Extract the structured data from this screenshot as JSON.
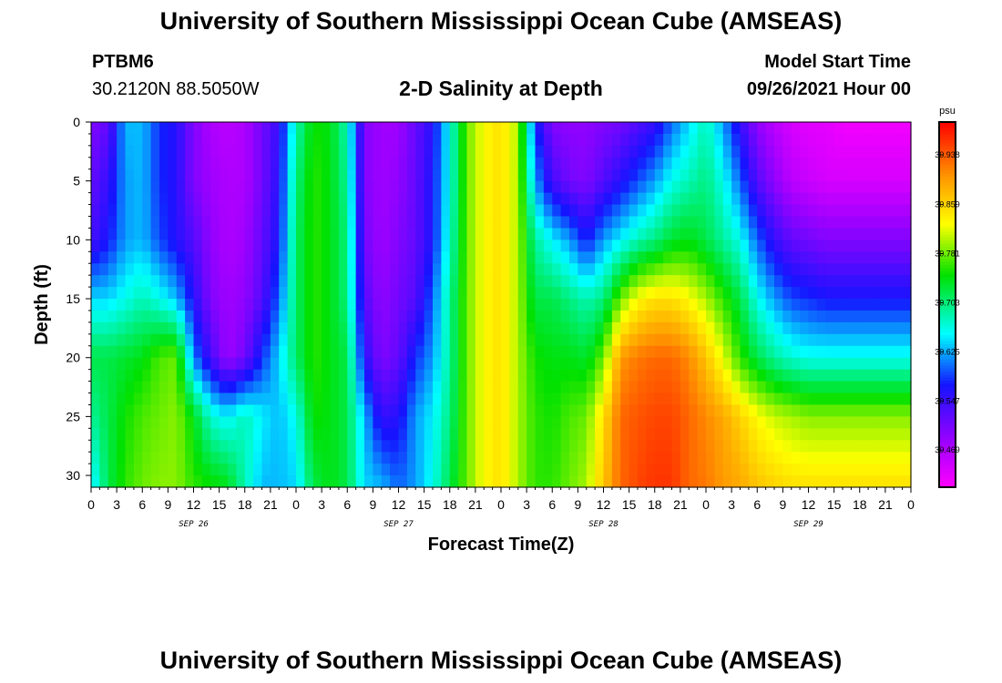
{
  "header": {
    "title_top": "University of Southern Mississippi Ocean Cube (AMSEAS)",
    "station": "PTBM6",
    "coords": "30.2120N  88.5050W",
    "plot_title": "2-D Salinity at Depth",
    "model_start_label": "Model Start Time",
    "model_start_value": "09/26/2021 Hour 00",
    "title_bottom": "University of Southern Mississippi Ocean Cube (AMSEAS)"
  },
  "chart_data": {
    "type": "heatmap",
    "title": "2-D Salinity at Depth",
    "xlabel": "Forecast Time(Z)",
    "ylabel": "Depth (ft)",
    "x_tick_labels": [
      "0",
      "3",
      "6",
      "9",
      "12",
      "15",
      "18",
      "21",
      "0",
      "3",
      "6",
      "9",
      "12",
      "15",
      "18",
      "21",
      "0",
      "3",
      "6",
      "9",
      "12",
      "15",
      "18",
      "21",
      "0",
      "3",
      "6",
      "9",
      "12",
      "15",
      "18",
      "21",
      "0"
    ],
    "x_hours_range": [
      0,
      96
    ],
    "date_labels": [
      {
        "text": "SEP 26",
        "hour": 12
      },
      {
        "text": "SEP 27",
        "hour": 36
      },
      {
        "text": "SEP 28",
        "hour": 60
      },
      {
        "text": "SEP 29",
        "hour": 84
      }
    ],
    "y_ticks": [
      0,
      5,
      10,
      15,
      20,
      25,
      30
    ],
    "ylim": [
      0,
      31
    ],
    "y_inverted": true,
    "colorbar": {
      "unit": "psu",
      "labels": [
        30.938,
        30.859,
        30.781,
        30.703,
        30.625,
        30.547,
        30.469
      ],
      "range": [
        30.41,
        30.99
      ]
    },
    "grid_hours": [
      0,
      2,
      4,
      6,
      8,
      10,
      12,
      14,
      16,
      18,
      20,
      22,
      24,
      26,
      28,
      30,
      32,
      34,
      36,
      38,
      40,
      42,
      44,
      46,
      48,
      50,
      52,
      54,
      56,
      58,
      60,
      62,
      64,
      66,
      68,
      70,
      72,
      74,
      76,
      78,
      80,
      82,
      84,
      86,
      88,
      90,
      92,
      94,
      96
    ],
    "grid_depths_ft": [
      0,
      5,
      10,
      15,
      20,
      25,
      31
    ],
    "salinity_psu": [
      [
        30.5,
        30.52,
        30.54,
        30.64,
        30.72,
        30.69,
        30.64
      ],
      [
        30.52,
        30.55,
        30.57,
        30.64,
        30.72,
        30.72,
        30.72
      ],
      [
        30.63,
        30.62,
        30.62,
        30.66,
        30.73,
        30.75,
        30.76
      ],
      [
        30.63,
        30.63,
        30.63,
        30.68,
        30.74,
        30.77,
        30.78
      ],
      [
        30.58,
        30.58,
        30.59,
        30.66,
        30.77,
        30.78,
        30.79
      ],
      [
        30.56,
        30.56,
        30.56,
        30.63,
        30.78,
        30.79,
        30.79
      ],
      [
        30.5,
        30.5,
        30.53,
        30.56,
        30.61,
        30.74,
        30.76
      ],
      [
        30.47,
        30.48,
        30.49,
        30.5,
        30.54,
        30.67,
        30.75
      ],
      [
        30.46,
        30.47,
        30.47,
        30.48,
        30.48,
        30.65,
        30.74
      ],
      [
        30.47,
        30.47,
        30.48,
        30.49,
        30.51,
        30.68,
        30.68
      ],
      [
        30.51,
        30.51,
        30.52,
        30.53,
        30.58,
        30.65,
        30.63
      ],
      [
        30.55,
        30.56,
        30.57,
        30.6,
        30.64,
        30.63,
        30.63
      ],
      [
        30.68,
        30.7,
        30.71,
        30.71,
        30.71,
        30.66,
        30.64
      ],
      [
        30.75,
        30.76,
        30.76,
        30.76,
        30.76,
        30.75,
        30.72
      ],
      [
        30.74,
        30.74,
        30.74,
        30.74,
        30.74,
        30.74,
        30.74
      ],
      [
        30.68,
        30.69,
        30.7,
        30.7,
        30.72,
        30.72,
        30.72
      ],
      [
        30.5,
        30.5,
        30.51,
        30.53,
        30.56,
        30.63,
        30.64
      ],
      [
        30.48,
        30.48,
        30.48,
        30.49,
        30.5,
        30.55,
        30.63
      ],
      [
        30.48,
        30.49,
        30.5,
        30.51,
        30.52,
        30.56,
        30.6
      ],
      [
        30.52,
        30.52,
        30.52,
        30.53,
        30.58,
        30.62,
        30.62
      ],
      [
        30.56,
        30.57,
        30.57,
        30.6,
        30.62,
        30.65,
        30.66
      ],
      [
        30.66,
        30.66,
        30.67,
        30.69,
        30.69,
        30.7,
        30.72
      ],
      [
        30.78,
        30.78,
        30.78,
        30.78,
        30.78,
        30.78,
        30.78
      ],
      [
        30.83,
        30.83,
        30.83,
        30.83,
        30.83,
        30.83,
        30.83
      ],
      [
        30.85,
        30.85,
        30.85,
        30.85,
        30.85,
        30.85,
        30.85
      ],
      [
        30.8,
        30.8,
        30.8,
        30.8,
        30.8,
        30.8,
        30.8
      ],
      [
        30.58,
        30.62,
        30.69,
        30.72,
        30.75,
        30.76,
        30.76
      ],
      [
        30.5,
        30.54,
        30.65,
        30.72,
        30.74,
        30.75,
        30.76
      ],
      [
        30.49,
        30.51,
        30.62,
        30.7,
        30.74,
        30.77,
        30.78
      ],
      [
        30.49,
        30.5,
        30.57,
        30.68,
        30.73,
        30.78,
        30.8
      ],
      [
        30.5,
        30.53,
        30.62,
        30.7,
        30.78,
        30.85,
        30.87
      ],
      [
        30.51,
        30.56,
        30.65,
        30.78,
        30.9,
        30.93,
        30.93
      ],
      [
        30.53,
        30.59,
        30.68,
        30.83,
        30.92,
        30.94,
        30.95
      ],
      [
        30.55,
        30.62,
        30.7,
        30.85,
        30.93,
        30.95,
        30.96
      ],
      [
        30.6,
        30.66,
        30.73,
        30.85,
        30.93,
        30.95,
        30.96
      ],
      [
        30.64,
        30.68,
        30.74,
        30.83,
        30.91,
        30.93,
        30.93
      ],
      [
        30.68,
        30.7,
        30.72,
        30.8,
        30.87,
        30.91,
        30.92
      ],
      [
        30.62,
        30.66,
        30.69,
        30.76,
        30.82,
        30.89,
        30.9
      ],
      [
        30.55,
        30.6,
        30.66,
        30.72,
        30.76,
        30.86,
        30.89
      ],
      [
        30.49,
        30.53,
        30.6,
        30.66,
        30.72,
        30.83,
        30.87
      ],
      [
        30.46,
        30.49,
        30.55,
        30.62,
        30.69,
        30.81,
        30.86
      ],
      [
        30.44,
        30.46,
        30.52,
        30.59,
        30.67,
        30.8,
        30.85
      ],
      [
        30.43,
        30.45,
        30.51,
        30.58,
        30.66,
        30.79,
        30.85
      ],
      [
        30.43,
        30.44,
        30.5,
        30.57,
        30.66,
        30.79,
        30.85
      ],
      [
        30.42,
        30.44,
        30.5,
        30.57,
        30.66,
        30.79,
        30.85
      ],
      [
        30.42,
        30.44,
        30.5,
        30.57,
        30.66,
        30.79,
        30.85
      ],
      [
        30.42,
        30.44,
        30.5,
        30.57,
        30.66,
        30.79,
        30.85
      ],
      [
        30.42,
        30.44,
        30.5,
        30.57,
        30.66,
        30.79,
        30.85
      ],
      [
        30.42,
        30.44,
        30.5,
        30.57,
        30.66,
        30.79,
        30.85
      ]
    ]
  }
}
